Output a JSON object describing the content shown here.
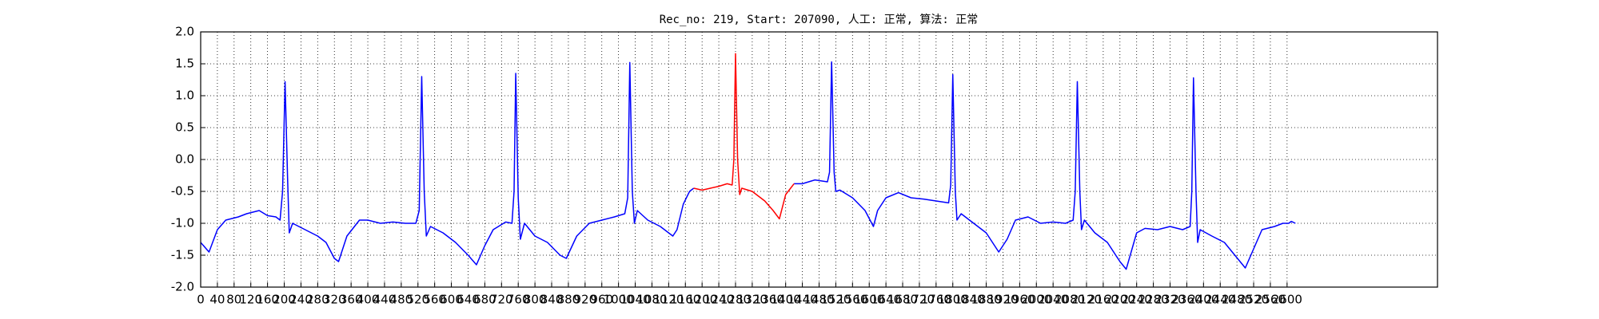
{
  "chart_data": {
    "type": "line",
    "title": "Rec_no: 219, Start: 207090, 人工: 正常, 算法: 正常",
    "x": [
      0,
      20,
      40,
      60,
      90,
      110,
      140,
      160,
      180,
      190,
      196,
      202,
      208,
      212,
      220,
      250,
      280,
      300,
      320,
      330,
      350,
      380,
      400,
      430,
      460,
      490,
      515,
      523,
      529,
      535,
      540,
      550,
      580,
      610,
      640,
      660,
      680,
      700,
      730,
      745,
      750,
      754,
      760,
      765,
      775,
      800,
      830,
      860,
      875,
      900,
      930,
      960,
      990,
      1015,
      1022,
      1027,
      1033,
      1038,
      1045,
      1070,
      1100,
      1130,
      1140,
      1155,
      1170,
      1180,
      1200,
      1220,
      1240,
      1260,
      1272,
      1276,
      1280,
      1285,
      1290,
      1295,
      1320,
      1350,
      1370,
      1385,
      1400,
      1420,
      1440,
      1470,
      1500,
      1505,
      1510,
      1516,
      1520,
      1530,
      1560,
      1590,
      1610,
      1620,
      1640,
      1670,
      1700,
      1730,
      1760,
      1790,
      1795,
      1800,
      1806,
      1810,
      1820,
      1850,
      1880,
      1910,
      1930,
      1950,
      1980,
      2010,
      2040,
      2070,
      2088,
      2093,
      2098,
      2104,
      2108,
      2115,
      2140,
      2170,
      2200,
      2215,
      2240,
      2260,
      2290,
      2320,
      2350,
      2368,
      2372,
      2376,
      2382,
      2386,
      2392,
      2420,
      2450,
      2475,
      2500,
      2520,
      2540,
      2570,
      2590,
      2604,
      2610,
      2620
    ],
    "series": [
      {
        "color": "#0000ff",
        "values": [
          -1.3,
          -1.45,
          -1.1,
          -0.95,
          -0.9,
          -0.85,
          -0.8,
          -0.88,
          -0.9,
          -0.95,
          -0.5,
          1.22,
          -0.3,
          -1.15,
          -1.0,
          -1.1,
          -1.2,
          -1.3,
          -1.55,
          -1.6,
          -1.2,
          -0.95,
          -0.95,
          -1.0,
          -0.98,
          -1.0,
          -1.0,
          -0.8,
          1.3,
          -0.5,
          -1.2,
          -1.05,
          -1.15,
          -1.3,
          -1.5,
          -1.65,
          -1.35,
          -1.1,
          -0.98,
          -1.0,
          -0.5,
          1.35,
          -0.6,
          -1.25,
          -1.0,
          -1.2,
          -1.3,
          -1.5,
          -1.55,
          -1.2,
          -1.0,
          -0.95,
          -0.9,
          -0.85,
          -0.6,
          1.52,
          -0.5,
          -1.0,
          -0.8,
          -0.95,
          -1.05,
          -1.2,
          -1.1,
          -0.7,
          -0.5,
          -0.45,
          null,
          null,
          null,
          null,
          null,
          null,
          null,
          null,
          null,
          null,
          null,
          null,
          null,
          null,
          null,
          -0.38,
          -0.38,
          -0.32,
          -0.35,
          -0.2,
          1.53,
          -0.2,
          -0.5,
          -0.48,
          -0.6,
          -0.8,
          -1.05,
          -0.8,
          -0.6,
          -0.52,
          -0.6,
          -0.62,
          -0.65,
          -0.68,
          -0.4,
          1.33,
          -0.5,
          -0.95,
          -0.85,
          -1.0,
          -1.15,
          -1.45,
          -1.25,
          -0.95,
          -0.9,
          -1.0,
          -0.98,
          -1.0,
          -0.95,
          -0.5,
          1.22,
          -0.5,
          -1.1,
          -0.95,
          -1.15,
          -1.3,
          -1.6,
          -1.72,
          -1.15,
          -1.08,
          -1.1,
          -1.05,
          -1.1,
          -1.05,
          -0.5,
          1.28,
          -0.5,
          -1.3,
          -1.1,
          -1.2,
          -1.3,
          -1.5,
          -1.7,
          -1.4,
          -1.1,
          -1.05,
          -1.0,
          -1.0,
          -0.97,
          -1.0
        ]
      },
      {
        "color": "#ff0000",
        "values": [
          null,
          null,
          null,
          null,
          null,
          null,
          null,
          null,
          null,
          null,
          null,
          null,
          null,
          null,
          null,
          null,
          null,
          null,
          null,
          null,
          null,
          null,
          null,
          null,
          null,
          null,
          null,
          null,
          null,
          null,
          null,
          null,
          null,
          null,
          null,
          null,
          null,
          null,
          null,
          null,
          null,
          null,
          null,
          null,
          null,
          null,
          null,
          null,
          null,
          null,
          null,
          null,
          null,
          null,
          null,
          null,
          null,
          null,
          null,
          null,
          null,
          null,
          null,
          null,
          null,
          -0.45,
          -0.48,
          -0.45,
          -0.42,
          -0.38,
          -0.4,
          0.0,
          1.66,
          0.0,
          -0.55,
          -0.45,
          -0.5,
          -0.65,
          -0.8,
          -0.93,
          -0.55,
          -0.38,
          null,
          null,
          null,
          null,
          null,
          null,
          null,
          null,
          null,
          null,
          null,
          null,
          null,
          null,
          null,
          null,
          null,
          null,
          null,
          null,
          null,
          null,
          null,
          null,
          null,
          null,
          null,
          null,
          null,
          null,
          null,
          null,
          null,
          null,
          null,
          null,
          null,
          null,
          null,
          null,
          null,
          null,
          null,
          null,
          null,
          null,
          null,
          null,
          null,
          null,
          null,
          null,
          null,
          null,
          null,
          null,
          null,
          null,
          null,
          null,
          null,
          null,
          null,
          null
        ]
      }
    ],
    "xlim": [
      0,
      2960
    ],
    "ylim": [
      -2,
      2
    ],
    "xticks": [
      0,
      40,
      80,
      120,
      160,
      200,
      240,
      280,
      320,
      360,
      400,
      440,
      480,
      520,
      560,
      600,
      640,
      680,
      720,
      760,
      800,
      840,
      880,
      920,
      960,
      1000,
      1040,
      1080,
      1120,
      1160,
      1200,
      1240,
      1280,
      1320,
      1360,
      1400,
      1440,
      1480,
      1520,
      1560,
      1600,
      1640,
      1680,
      1720,
      1760,
      1800,
      1840,
      1880,
      1920,
      1960,
      2000,
      2040,
      2080,
      2120,
      2160,
      2200,
      2240,
      2280,
      2320,
      2360,
      2400,
      2440,
      2480,
      2520,
      2560,
      2600
    ],
    "yticks": [
      {
        "value": -2,
        "label": "-2.0"
      },
      {
        "value": -1.5,
        "label": "-1.5"
      },
      {
        "value": -1,
        "label": "-1.0"
      },
      {
        "value": -0.5,
        "label": "-0.5"
      },
      {
        "value": 0,
        "label": "0.0"
      },
      {
        "value": 0.5,
        "label": "0.5"
      },
      {
        "value": 1,
        "label": "1.0"
      },
      {
        "value": 1.5,
        "label": "1.5"
      },
      {
        "value": 2,
        "label": "2.0"
      }
    ],
    "grid": true
  }
}
